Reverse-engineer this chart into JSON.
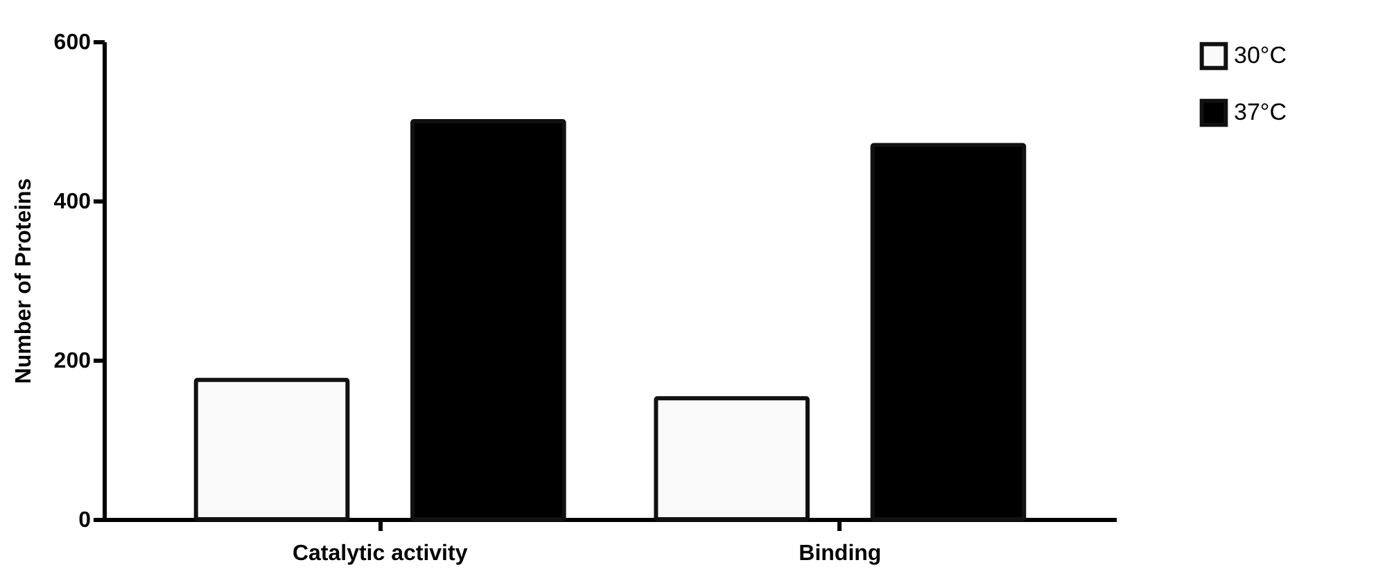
{
  "chart_data": {
    "type": "bar",
    "ylabel": "Number of Proteins",
    "categories": [
      "Catalytic activity",
      "Binding"
    ],
    "series": [
      {
        "name": "30°C",
        "color": "#fafafa",
        "values": [
          175,
          152
        ]
      },
      {
        "name": "37°C",
        "color": "#000000",
        "values": [
          500,
          470
        ]
      }
    ],
    "ylim": [
      0,
      600
    ],
    "yticks": [
      0,
      200,
      400,
      600
    ],
    "grid": false,
    "legend": "right"
  }
}
